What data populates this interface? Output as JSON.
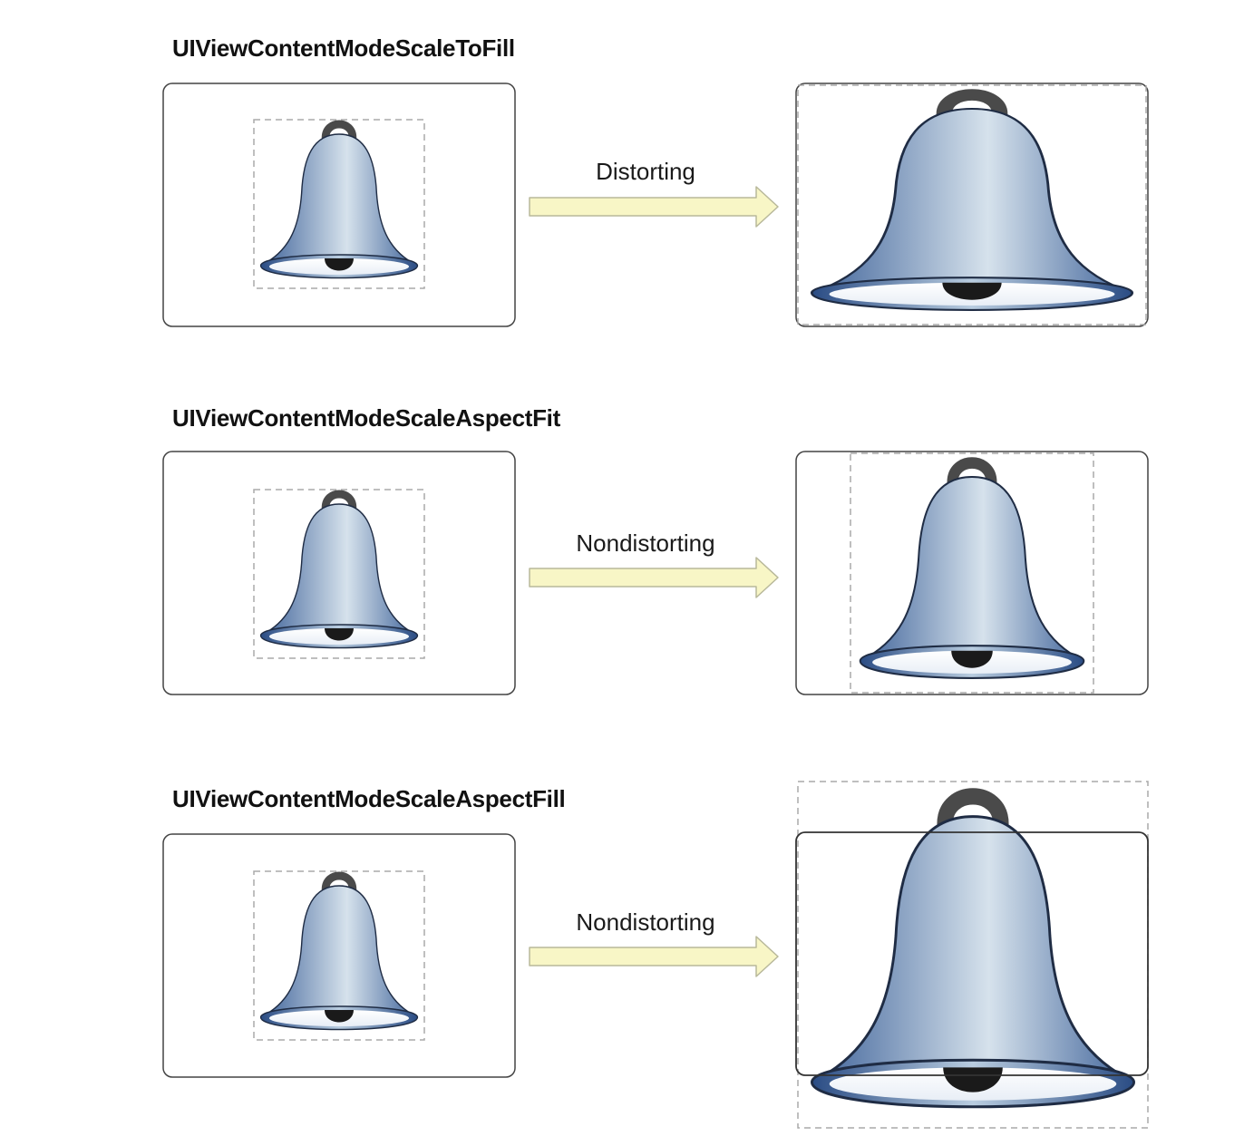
{
  "rows": [
    {
      "mode": "UIViewContentModeScaleToFill",
      "arrow_label": "Distorting"
    },
    {
      "mode": "UIViewContentModeScaleAspectFit",
      "arrow_label": "Nondistorting"
    },
    {
      "mode": "UIViewContentModeScaleAspectFill",
      "arrow_label": "Nondistorting"
    }
  ],
  "colors": {
    "frame_stroke": "#444444",
    "dashed_stroke": "#aaaaaa",
    "arrow_fill": "#f8f6c6",
    "arrow_stroke": "#b8b89a",
    "bell_dark": "#3e6299",
    "bell_light": "#d6e2ec",
    "bell_outline": "#1f2c44",
    "handle": "#4a4a4a",
    "clapper": "#1a1a1a"
  },
  "icons": [
    "bell-icon",
    "arrow-right-icon"
  ]
}
